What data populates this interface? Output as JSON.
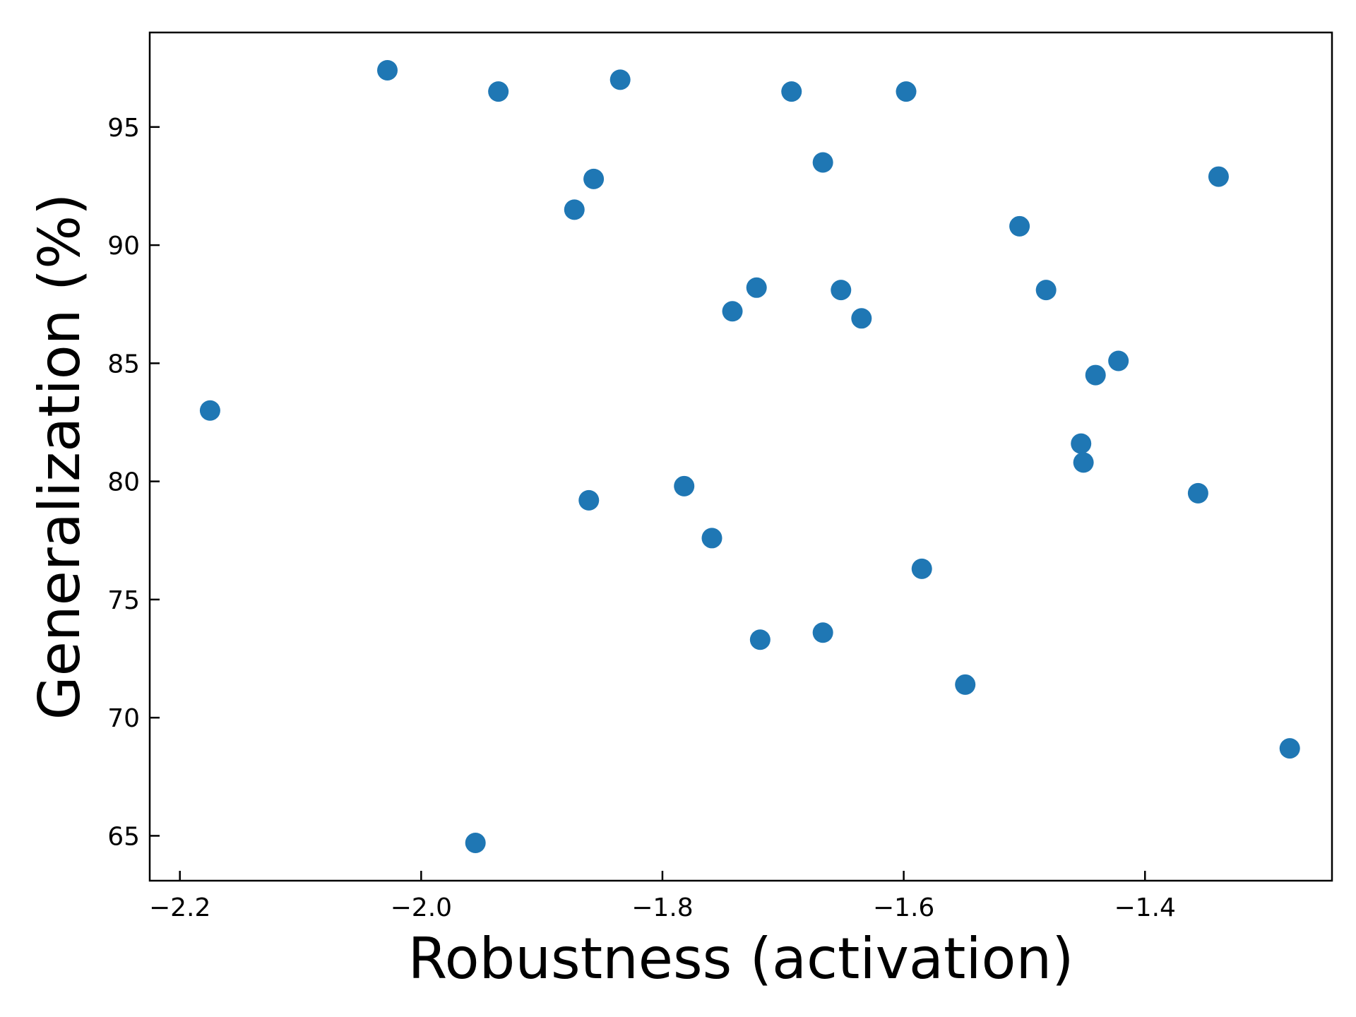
{
  "chart_data": {
    "type": "scatter",
    "title": "",
    "xlabel": "Robustness (activation)",
    "ylabel": "Generalization (%)",
    "xlim": [
      -2.225,
      -1.245
    ],
    "ylim": [
      63.1,
      99.0
    ],
    "x_ticks": [
      -2.2,
      -2.0,
      -1.8,
      -1.6,
      -1.4
    ],
    "x_tick_labels": [
      "−2.2",
      "−2.0",
      "−1.8",
      "−1.6",
      "−1.4"
    ],
    "y_ticks": [
      65,
      70,
      75,
      80,
      85,
      90,
      95
    ],
    "y_tick_labels": [
      "65",
      "70",
      "75",
      "80",
      "85",
      "90",
      "95"
    ],
    "grid": false,
    "legend": null,
    "marker_color": "#1f77b4",
    "series": [
      {
        "points": [
          {
            "x": -2.175,
            "y": 83.0
          },
          {
            "x": -2.028,
            "y": 97.4
          },
          {
            "x": -1.955,
            "y": 64.7
          },
          {
            "x": -1.936,
            "y": 96.5
          },
          {
            "x": -1.873,
            "y": 91.5
          },
          {
            "x": -1.861,
            "y": 79.2
          },
          {
            "x": -1.857,
            "y": 92.8
          },
          {
            "x": -1.835,
            "y": 97.0
          },
          {
            "x": -1.782,
            "y": 79.8
          },
          {
            "x": -1.759,
            "y": 77.6
          },
          {
            "x": -1.742,
            "y": 87.2
          },
          {
            "x": -1.722,
            "y": 88.2
          },
          {
            "x": -1.719,
            "y": 73.3
          },
          {
            "x": -1.693,
            "y": 96.5
          },
          {
            "x": -1.667,
            "y": 93.5
          },
          {
            "x": -1.667,
            "y": 73.6
          },
          {
            "x": -1.652,
            "y": 88.1
          },
          {
            "x": -1.635,
            "y": 86.9
          },
          {
            "x": -1.598,
            "y": 96.5
          },
          {
            "x": -1.585,
            "y": 76.3
          },
          {
            "x": -1.549,
            "y": 71.4
          },
          {
            "x": -1.504,
            "y": 90.8
          },
          {
            "x": -1.482,
            "y": 88.1
          },
          {
            "x": -1.453,
            "y": 81.6
          },
          {
            "x": -1.451,
            "y": 80.8
          },
          {
            "x": -1.441,
            "y": 84.5
          },
          {
            "x": -1.422,
            "y": 85.1
          },
          {
            "x": -1.356,
            "y": 79.5
          },
          {
            "x": -1.339,
            "y": 92.9
          },
          {
            "x": -1.28,
            "y": 68.7
          }
        ]
      }
    ]
  }
}
